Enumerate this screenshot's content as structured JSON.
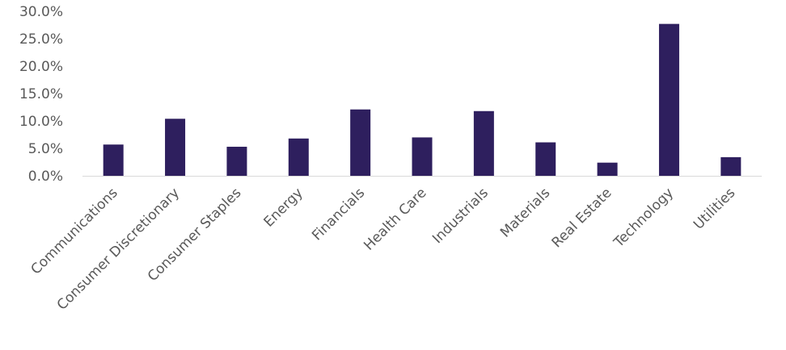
{
  "chart_data": {
    "type": "bar",
    "categories": [
      "Communications",
      "Consumer Discretionary",
      "Consumer Staples",
      "Energy",
      "Financials",
      "Health Care",
      "Industrials",
      "Materials",
      "Real Estate",
      "Technology",
      "Utilities"
    ],
    "values": [
      5.7,
      10.4,
      5.3,
      6.8,
      12.1,
      7.0,
      11.8,
      6.1,
      2.4,
      27.7,
      3.4
    ],
    "value_format": "percent",
    "yticks": [
      "0.0%",
      "5.0%",
      "10.0%",
      "15.0%",
      "20.0%",
      "25.0%",
      "30.0%"
    ],
    "ylim": [
      0,
      30
    ],
    "title": "",
    "xlabel": "",
    "ylabel": "",
    "grid": false,
    "legend": "none",
    "bar_color": "#2E1F5E"
  }
}
